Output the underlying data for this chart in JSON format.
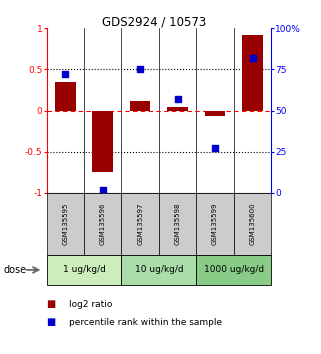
{
  "title": "GDS2924 / 10573",
  "samples": [
    "GSM135595",
    "GSM135596",
    "GSM135597",
    "GSM135598",
    "GSM135599",
    "GSM135600"
  ],
  "log2_ratio": [
    0.35,
    -0.75,
    0.12,
    0.05,
    -0.07,
    0.92
  ],
  "percentile_rank": [
    72,
    2,
    75,
    57,
    27,
    82
  ],
  "dose_groups": [
    {
      "label": "1 ug/kg/d",
      "samples": [
        0,
        1
      ],
      "color": "#cceebb"
    },
    {
      "label": "10 ug/kg/d",
      "samples": [
        2,
        3
      ],
      "color": "#aaddaa"
    },
    {
      "label": "1000 ug/kg/d",
      "samples": [
        4,
        5
      ],
      "color": "#88cc88"
    }
  ],
  "bar_color": "#990000",
  "scatter_color": "#0000cc",
  "left_ylim": [
    -1.0,
    1.0
  ],
  "right_ylim": [
    0,
    100
  ],
  "left_yticks": [
    -1.0,
    -0.5,
    0.0,
    0.5,
    1.0
  ],
  "left_yticklabels": [
    "-1",
    "-0.5",
    "0",
    "0.5",
    "1"
  ],
  "right_yticks": [
    0,
    25,
    50,
    75,
    100
  ],
  "right_yticklabels": [
    "0",
    "25",
    "50",
    "75",
    "100%"
  ],
  "sample_bg_color": "#cccccc",
  "dose_label": "dose",
  "legend_log2": "log2 ratio",
  "legend_pct": "percentile rank within the sample",
  "bar_width": 0.55,
  "scatter_size": 18
}
